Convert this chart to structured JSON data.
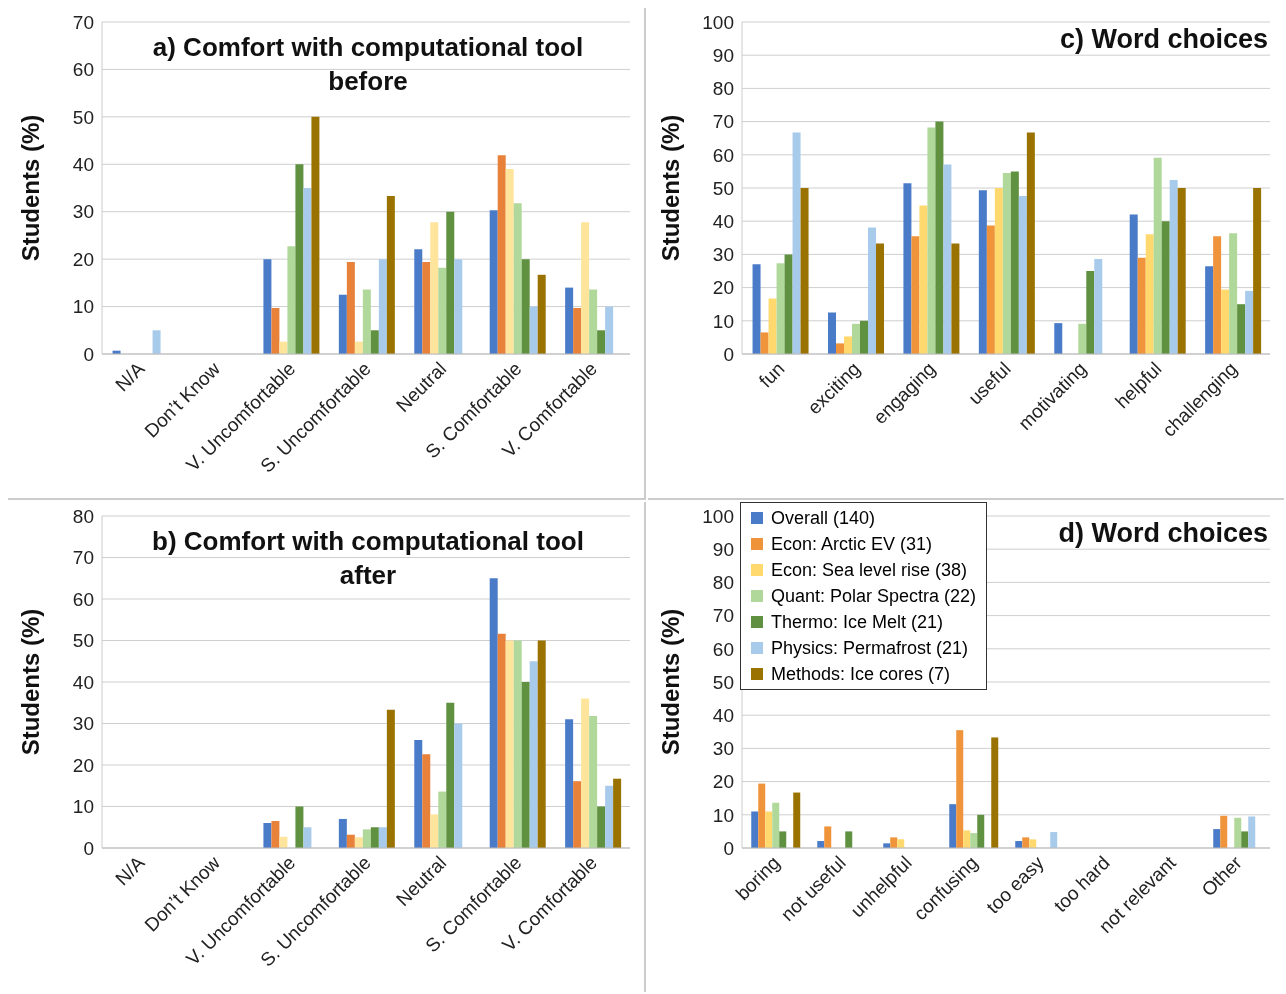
{
  "chart_data": [
    {
      "type": "bar",
      "title": "a) Comfort with computational tool before",
      "ylabel": "Students (%)",
      "categories": [
        "N/A",
        "Don’t Know",
        "V. Uncomfortable",
        "S. Uncomfortable",
        "Neutral",
        "S. Comfortable",
        "V. Comfortable"
      ],
      "ylim": [
        0,
        70
      ],
      "yticks": [
        0,
        10,
        20,
        30,
        40,
        50,
        60,
        70
      ],
      "grid": "y",
      "legend": false,
      "series": [
        {
          "color": "#4a7bc8",
          "values": [
            0.7,
            0,
            20,
            12.5,
            22.1,
            30.3,
            14
          ]
        },
        {
          "color": "#e8813a",
          "values": [
            0,
            0,
            9.7,
            19.4,
            19.4,
            41.9,
            9.7
          ]
        },
        {
          "color": "#ffe49c",
          "values": [
            0,
            0,
            2.6,
            2.6,
            27.8,
            39,
            27.8
          ]
        },
        {
          "color": "#b1d89b",
          "values": [
            0,
            0,
            22.7,
            13.6,
            18.2,
            31.8,
            13.6
          ]
        },
        {
          "color": "#5f9140",
          "values": [
            0,
            0,
            40,
            5,
            30,
            20,
            5
          ]
        },
        {
          "color": "#a9cbeb",
          "values": [
            5,
            0,
            35,
            20,
            20,
            10,
            10
          ]
        },
        {
          "color": "#9a7200",
          "values": [
            0,
            0,
            50,
            33.3,
            0,
            16.7,
            0
          ]
        }
      ]
    },
    {
      "type": "bar",
      "title": "b) Comfort with computational tool after",
      "ylabel": "Students (%)",
      "categories": [
        "N/A",
        "Don’t Know",
        "V. Uncomfortable",
        "S. Uncomfortable",
        "Neutral",
        "S. Comfortable",
        "V. Comfortable"
      ],
      "ylim": [
        0,
        80
      ],
      "yticks": [
        0,
        10,
        20,
        30,
        40,
        50,
        60,
        70,
        80
      ],
      "grid": "y",
      "legend": false,
      "series": [
        {
          "color": "#4a7bc8",
          "values": [
            0,
            0,
            6,
            7,
            26,
            65,
            31
          ]
        },
        {
          "color": "#e8813a",
          "values": [
            0,
            0,
            6.5,
            3.2,
            22.6,
            51.6,
            16.1
          ]
        },
        {
          "color": "#ffe49c",
          "values": [
            0,
            0,
            2.7,
            2.6,
            8.1,
            50,
            36
          ]
        },
        {
          "color": "#b1d89b",
          "values": [
            0,
            0,
            0,
            4.5,
            13.6,
            50,
            31.8
          ]
        },
        {
          "color": "#5f9140",
          "values": [
            0,
            0,
            10,
            5,
            35,
            40,
            10
          ]
        },
        {
          "color": "#a9cbeb",
          "values": [
            0,
            0,
            5,
            5,
            30,
            45,
            15
          ]
        },
        {
          "color": "#9a7200",
          "values": [
            0,
            0,
            0,
            33.3,
            0,
            50,
            16.7
          ]
        }
      ]
    },
    {
      "type": "bar",
      "title": "c) Word choices",
      "ylabel": "Students (%)",
      "categories": [
        "fun",
        "exciting",
        "engaging",
        "useful",
        "motivating",
        "helpful",
        "challenging"
      ],
      "ylim": [
        0,
        100
      ],
      "yticks": [
        0,
        10,
        20,
        30,
        40,
        50,
        60,
        70,
        80,
        90,
        100
      ],
      "grid": "y",
      "legend": false,
      "series": [
        {
          "color": "#4a7bc8",
          "values": [
            27,
            12.5,
            51.4,
            49.3,
            9.3,
            42,
            26.4
          ]
        },
        {
          "color": "#f0943c",
          "values": [
            6.5,
            3.2,
            35.5,
            38.7,
            0,
            29,
            35.5
          ]
        },
        {
          "color": "#ffd96e",
          "values": [
            16.7,
            5.3,
            44.7,
            50,
            0,
            36.1,
            19.4
          ]
        },
        {
          "color": "#b1d89b",
          "values": [
            27.3,
            9.1,
            68.2,
            54.5,
            9.1,
            59.1,
            36.4
          ]
        },
        {
          "color": "#5f9140",
          "values": [
            30,
            10,
            70,
            55,
            25,
            40,
            15
          ]
        },
        {
          "color": "#a9cbeb",
          "values": [
            66.7,
            38.1,
            57.1,
            47.6,
            28.6,
            52.4,
            19
          ]
        },
        {
          "color": "#9a7200",
          "values": [
            50,
            33.3,
            33.3,
            66.7,
            0,
            50,
            50
          ]
        }
      ]
    },
    {
      "type": "bar",
      "title": "d) Word choices",
      "ylabel": "Students (%)",
      "categories": [
        "boring",
        "not useful",
        "unhelpful",
        "confusing",
        "too easy",
        "too hard",
        "not relevant",
        "Other"
      ],
      "ylim": [
        0,
        100
      ],
      "yticks": [
        0,
        10,
        20,
        30,
        40,
        50,
        60,
        70,
        80,
        90,
        100
      ],
      "grid": "y",
      "legend": "top left",
      "series": [
        {
          "name": "Overall (140)",
          "color": "#4a7bc8",
          "values": [
            11,
            2.1,
            1.4,
            13.2,
            2.1,
            0,
            0,
            5.7
          ]
        },
        {
          "name": "Econ: Arctic EV (31)",
          "color": "#f0943c",
          "values": [
            19.4,
            6.5,
            3.2,
            35.5,
            3.2,
            0,
            0,
            9.7
          ]
        },
        {
          "name": "Econ: Sea level rise (38)",
          "color": "#ffd96e",
          "values": [
            11,
            0,
            2.6,
            5.3,
            2.6,
            0,
            0,
            0
          ]
        },
        {
          "name": "Quant: Polar Spectra (22)",
          "color": "#b1d89b",
          "values": [
            13.6,
            0,
            0,
            4.5,
            0,
            0,
            0,
            9.1
          ]
        },
        {
          "name": "Thermo: Ice Melt (21)",
          "color": "#5f9140",
          "values": [
            5,
            5,
            0,
            10,
            0,
            0,
            0,
            5
          ]
        },
        {
          "name": "Physics: Permafrost (21)",
          "color": "#a9cbeb",
          "values": [
            0,
            0,
            0,
            0,
            4.8,
            0,
            0,
            9.5
          ]
        },
        {
          "name": "Methods: Ice cores (7)",
          "color": "#9a7200",
          "values": [
            16.7,
            0,
            0,
            33.3,
            0,
            0,
            0,
            0
          ]
        }
      ]
    }
  ]
}
